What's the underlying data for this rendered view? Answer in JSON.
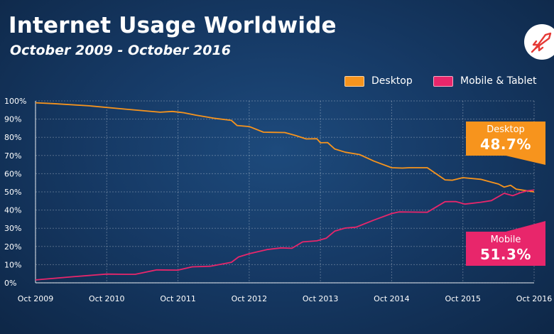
{
  "header": {
    "title": "Internet Usage Worldwide",
    "subtitle": "October 2009 - October 2016"
  },
  "logo": {
    "icon": "rocket-icon",
    "color": "#e53935"
  },
  "legend": {
    "placement": "top-right",
    "items": [
      {
        "label": "Desktop",
        "color": "#f7941d"
      },
      {
        "label": "Mobile & Tablet",
        "color": "#e8266b"
      }
    ]
  },
  "callouts": {
    "desktop": {
      "label": "Desktop",
      "value": "48.7%",
      "color": "#f7941d"
    },
    "mobile": {
      "label": "Mobile",
      "value": "51.3%",
      "color": "#e8266b"
    }
  },
  "chart_data": {
    "type": "line",
    "x_ticks": [
      "Oct 2009",
      "Oct 2010",
      "Oct 2011",
      "Oct 2012",
      "Oct 2013",
      "Oct 2014",
      "Oct 2015",
      "Oct 2016"
    ],
    "y_ticks": [
      "0%",
      "10%",
      "20%",
      "30%",
      "40%",
      "50%",
      "60%",
      "70%",
      "80%",
      "90%",
      "100%"
    ],
    "ylim": [
      0,
      100
    ],
    "xlim": [
      2009.75,
      2016.75
    ],
    "grid": true,
    "series": [
      {
        "name": "Desktop",
        "color": "#f7941d",
        "points": [
          [
            2009.75,
            99.0
          ],
          [
            2010.0,
            98.5
          ],
          [
            2010.5,
            97.3
          ],
          [
            2011.0,
            95.5
          ],
          [
            2011.5,
            93.8
          ],
          [
            2011.67,
            94.2
          ],
          [
            2011.83,
            93.5
          ],
          [
            2012.0,
            92.2
          ],
          [
            2012.25,
            90.5
          ],
          [
            2012.5,
            89.3
          ],
          [
            2012.58,
            86.5
          ],
          [
            2012.75,
            85.9
          ],
          [
            2012.95,
            82.8
          ],
          [
            2013.25,
            82.6
          ],
          [
            2013.4,
            81.0
          ],
          [
            2013.55,
            79.1
          ],
          [
            2013.7,
            79.2
          ],
          [
            2013.75,
            77.0
          ],
          [
            2013.85,
            77.1
          ],
          [
            2013.95,
            73.6
          ],
          [
            2014.1,
            71.8
          ],
          [
            2014.3,
            70.5
          ],
          [
            2014.5,
            66.9
          ],
          [
            2014.75,
            63.3
          ],
          [
            2014.9,
            63.1
          ],
          [
            2015.0,
            63.3
          ],
          [
            2015.25,
            63.3
          ],
          [
            2015.5,
            56.6
          ],
          [
            2015.6,
            56.4
          ],
          [
            2015.75,
            57.8
          ],
          [
            2016.0,
            56.9
          ],
          [
            2016.25,
            54.3
          ],
          [
            2016.33,
            52.6
          ],
          [
            2016.42,
            53.6
          ],
          [
            2016.5,
            51.5
          ],
          [
            2016.75,
            50.0
          ]
        ]
      },
      {
        "name": "Mobile & Tablet",
        "color": "#e8266b",
        "points": [
          [
            2009.75,
            1.6
          ],
          [
            2010.25,
            3.3
          ],
          [
            2010.75,
            4.8
          ],
          [
            2011.0,
            4.7
          ],
          [
            2011.15,
            4.7
          ],
          [
            2011.45,
            7.1
          ],
          [
            2011.75,
            7.0
          ],
          [
            2011.95,
            8.8
          ],
          [
            2012.2,
            9.1
          ],
          [
            2012.5,
            11.3
          ],
          [
            2012.6,
            14.2
          ],
          [
            2012.75,
            16.0
          ],
          [
            2013.0,
            18.3
          ],
          [
            2013.2,
            19.2
          ],
          [
            2013.35,
            19.0
          ],
          [
            2013.5,
            22.5
          ],
          [
            2013.7,
            23.1
          ],
          [
            2013.83,
            24.5
          ],
          [
            2013.95,
            28.4
          ],
          [
            2014.1,
            30.1
          ],
          [
            2014.25,
            30.6
          ],
          [
            2014.5,
            34.5
          ],
          [
            2014.75,
            38.1
          ],
          [
            2014.85,
            39.0
          ],
          [
            2015.0,
            38.9
          ],
          [
            2015.25,
            38.8
          ],
          [
            2015.5,
            44.6
          ],
          [
            2015.65,
            44.7
          ],
          [
            2015.78,
            43.3
          ],
          [
            2016.0,
            44.3
          ],
          [
            2016.15,
            45.2
          ],
          [
            2016.33,
            49.2
          ],
          [
            2016.45,
            47.9
          ],
          [
            2016.55,
            49.4
          ],
          [
            2016.65,
            50.6
          ],
          [
            2016.75,
            51.0
          ]
        ]
      }
    ]
  }
}
